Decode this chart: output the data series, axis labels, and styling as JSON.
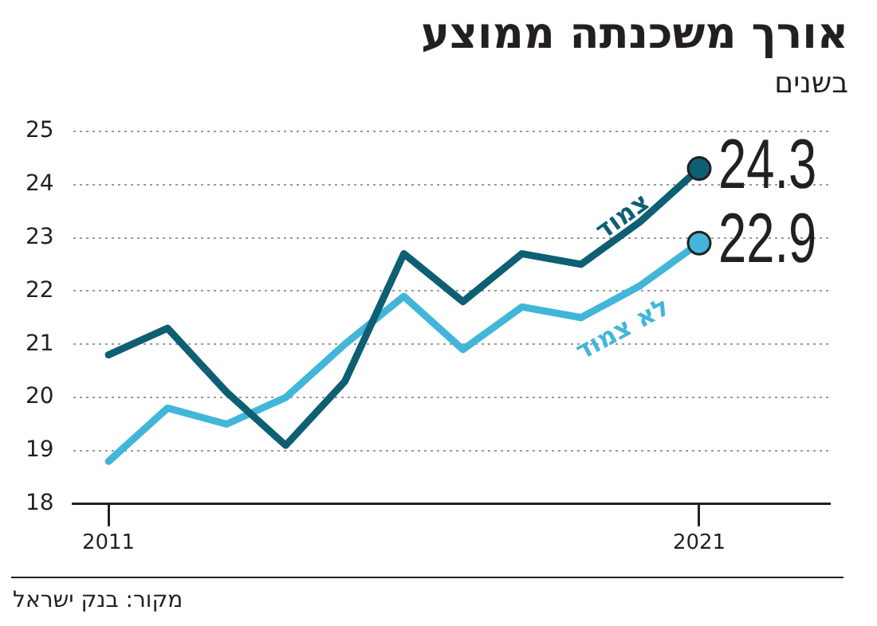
{
  "chart_data": {
    "type": "line",
    "title": "אורך משכנתה ממוצע",
    "subtitle": "בשנים",
    "x": [
      2011,
      2012,
      2013,
      2014,
      2015,
      2016,
      2017,
      2018,
      2019,
      2020,
      2021
    ],
    "series": [
      {
        "name": "צמוד",
        "color": "#0e5f73",
        "values": [
          20.8,
          21.3,
          20.1,
          19.1,
          20.3,
          22.7,
          21.8,
          22.7,
          22.5,
          23.3,
          24.3
        ],
        "value_labels": [
          null,
          null,
          null,
          null,
          null,
          null,
          null,
          null,
          null,
          null,
          "24.3"
        ]
      },
      {
        "name": "לא צמוד",
        "color": "#41b6d9",
        "values": [
          18.8,
          19.8,
          19.5,
          20.0,
          21.0,
          21.9,
          20.9,
          21.7,
          21.5,
          22.1,
          22.9
        ],
        "value_labels": [
          null,
          null,
          null,
          null,
          null,
          null,
          null,
          null,
          null,
          null,
          "22.9"
        ]
      }
    ],
    "xlim": [
      2010.4,
      2023.2
    ],
    "xticks": [
      2011,
      2021
    ],
    "ylim": [
      18,
      25
    ],
    "yticks": [
      18,
      19,
      20,
      21,
      22,
      23,
      24,
      25
    ],
    "grid": "y",
    "legend": false,
    "line_style": "solid",
    "annotations": [
      "מקור: בנק ישראל"
    ]
  }
}
